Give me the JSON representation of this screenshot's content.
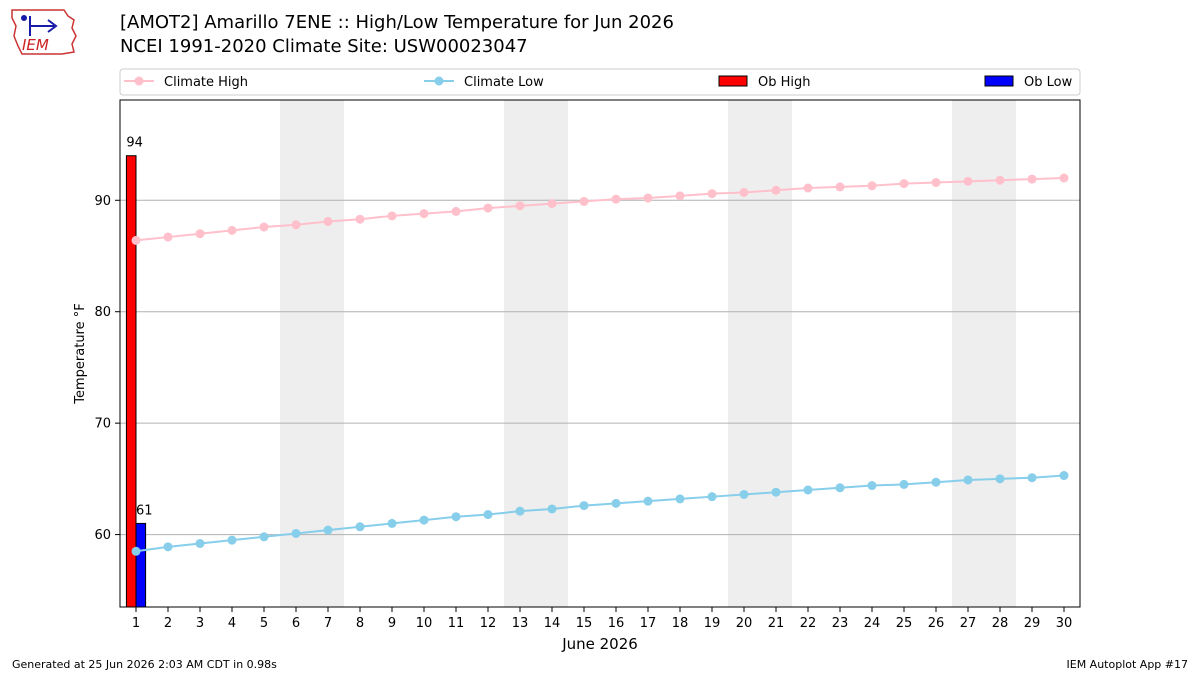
{
  "header": {
    "title": "[AMOT2] Amarillo 7ENE :: High/Low Temperature for Jun 2026",
    "subtitle": "NCEI 1991-2020 Climate Site: USW00023047"
  },
  "logo": {
    "text": "IEM",
    "icon": "iem-logo-icon"
  },
  "footer": {
    "generated": "Generated at 25 Jun 2026 2:03 AM CDT in 0.98s",
    "app": "IEM Autoplot App #17"
  },
  "colors": {
    "climate_high": "#ffc0cb",
    "climate_low": "#87ceeb",
    "ob_high": "#ff0000",
    "ob_low": "#0000ff",
    "weekend_band": "#eeeeee",
    "grid": "#b0b0b0"
  },
  "chart_data": {
    "type": "bar",
    "xlabel": "June 2026",
    "ylabel": "Temperature °F",
    "xlim": [
      0.5,
      30.5
    ],
    "ylim": [
      53.5,
      99
    ],
    "yticks": [
      60,
      70,
      80,
      90
    ],
    "grid": "y",
    "legend": "top",
    "weekend_bands": [
      [
        5.5,
        7.5
      ],
      [
        12.5,
        14.5
      ],
      [
        19.5,
        21.5
      ],
      [
        26.5,
        28.5
      ]
    ],
    "x": [
      1,
      2,
      3,
      4,
      5,
      6,
      7,
      8,
      9,
      10,
      11,
      12,
      13,
      14,
      15,
      16,
      17,
      18,
      19,
      20,
      21,
      22,
      23,
      24,
      25,
      26,
      27,
      28,
      29,
      30
    ],
    "series": [
      {
        "name": "Climate High",
        "kind": "line",
        "values": [
          86.4,
          86.7,
          87.0,
          87.3,
          87.6,
          87.8,
          88.1,
          88.3,
          88.6,
          88.8,
          89.0,
          89.3,
          89.5,
          89.7,
          89.9,
          90.1,
          90.2,
          90.4,
          90.6,
          90.7,
          90.9,
          91.1,
          91.2,
          91.3,
          91.5,
          91.6,
          91.7,
          91.8,
          91.9,
          92.0
        ]
      },
      {
        "name": "Climate Low",
        "kind": "line",
        "values": [
          58.5,
          58.9,
          59.2,
          59.5,
          59.8,
          60.1,
          60.4,
          60.7,
          61.0,
          61.3,
          61.6,
          61.8,
          62.1,
          62.3,
          62.6,
          62.8,
          63.0,
          63.2,
          63.4,
          63.6,
          63.8,
          64.0,
          64.2,
          64.4,
          64.5,
          64.7,
          64.9,
          65.0,
          65.1,
          65.3
        ]
      },
      {
        "name": "Ob High",
        "kind": "bar",
        "x": [
          1
        ],
        "values": [
          94
        ],
        "labels": [
          "94"
        ]
      },
      {
        "name": "Ob Low",
        "kind": "bar",
        "x": [
          1
        ],
        "values": [
          61
        ],
        "labels": [
          "61"
        ]
      }
    ]
  }
}
